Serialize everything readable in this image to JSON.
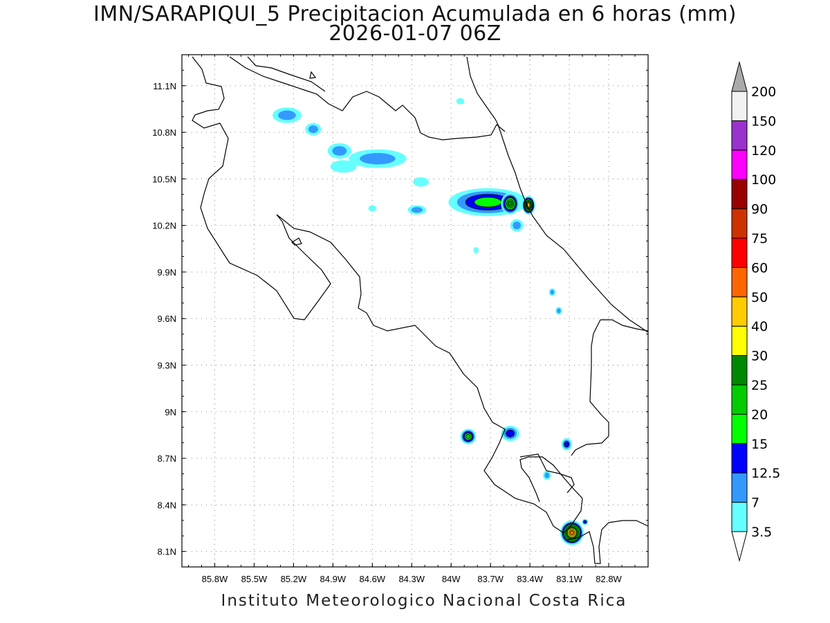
{
  "title_line1": "IMN/SARAPIQUI_5 Precipitacion Acumulada en 6 horas (mm)",
  "title_line2": "2026-01-07 06Z",
  "footer": "Instituto Meteorologico Nacional Costa Rica",
  "map": {
    "lon_range": [
      -86.05,
      -82.5
    ],
    "lat_range": [
      8.0,
      11.3
    ],
    "lon_ticks": [
      {
        "v": -85.8,
        "label": "85.8W"
      },
      {
        "v": -85.5,
        "label": "85.5W"
      },
      {
        "v": -85.2,
        "label": "85.2W"
      },
      {
        "v": -84.9,
        "label": "84.9W"
      },
      {
        "v": -84.6,
        "label": "84.6W"
      },
      {
        "v": -84.3,
        "label": "84.3W"
      },
      {
        "v": -84.0,
        "label": "84W"
      },
      {
        "v": -83.7,
        "label": "83.7W"
      },
      {
        "v": -83.4,
        "label": "83.4W"
      },
      {
        "v": -83.1,
        "label": "83.1W"
      },
      {
        "v": -82.8,
        "label": "82.8W"
      }
    ],
    "lat_ticks": [
      {
        "v": 11.1,
        "label": "11.1N"
      },
      {
        "v": 10.8,
        "label": "10.8N"
      },
      {
        "v": 10.5,
        "label": "10.5N"
      },
      {
        "v": 10.2,
        "label": "10.2N"
      },
      {
        "v": 9.9,
        "label": "9.9N"
      },
      {
        "v": 9.6,
        "label": "9.6N"
      },
      {
        "v": 9.3,
        "label": "9.3N"
      },
      {
        "v": 9.0,
        "label": "9N"
      },
      {
        "v": 8.7,
        "label": "8.7N"
      },
      {
        "v": 8.4,
        "label": "8.4N"
      },
      {
        "v": 8.1,
        "label": "8.1N"
      }
    ],
    "grid": "dotted"
  },
  "colorbar": {
    "levels": [
      "3.5",
      "7",
      "12.5",
      "15",
      "20",
      "25",
      "30",
      "40",
      "50",
      "60",
      "75",
      "90",
      "100",
      "120",
      "150",
      "200"
    ],
    "colors": [
      "#ffffff",
      "#66ffff",
      "#3399ff",
      "#0000ff",
      "#00ff00",
      "#00cc00",
      "#008800",
      "#ffff00",
      "#ffcc00",
      "#ff6600",
      "#ff0000",
      "#cc3300",
      "#990000",
      "#ff00ff",
      "#9933cc",
      "#f2f2f2",
      "#aaaaaa"
    ]
  },
  "precip_cells": [
    {
      "lon": -85.25,
      "lat": 10.91,
      "rx": 0.11,
      "ry": 0.05,
      "max": 7
    },
    {
      "lon": -85.05,
      "lat": 10.82,
      "rx": 0.06,
      "ry": 0.04,
      "max": 7
    },
    {
      "lon": -84.85,
      "lat": 10.68,
      "rx": 0.09,
      "ry": 0.05,
      "max": 7
    },
    {
      "lon": -84.56,
      "lat": 10.63,
      "rx": 0.22,
      "ry": 0.06,
      "max": 7
    },
    {
      "lon": -84.82,
      "lat": 10.58,
      "rx": 0.1,
      "ry": 0.04,
      "max": 3.5
    },
    {
      "lon": -83.93,
      "lat": 11.0,
      "rx": 0.03,
      "ry": 0.02,
      "max": 3.5
    },
    {
      "lon": -84.23,
      "lat": 10.48,
      "rx": 0.06,
      "ry": 0.03,
      "max": 3.5
    },
    {
      "lon": -84.26,
      "lat": 10.3,
      "rx": 0.07,
      "ry": 0.03,
      "max": 7
    },
    {
      "lon": -84.6,
      "lat": 10.31,
      "rx": 0.03,
      "ry": 0.02,
      "max": 3.5
    },
    {
      "lon": -83.72,
      "lat": 10.35,
      "rx": 0.3,
      "ry": 0.09,
      "max": 15
    },
    {
      "lon": -83.55,
      "lat": 10.34,
      "rx": 0.07,
      "ry": 0.07,
      "max": 25
    },
    {
      "lon": -83.41,
      "lat": 10.33,
      "rx": 0.05,
      "ry": 0.06,
      "max": 40
    },
    {
      "lon": -83.5,
      "lat": 10.2,
      "rx": 0.05,
      "ry": 0.04,
      "max": 7
    },
    {
      "lon": -83.81,
      "lat": 10.04,
      "rx": 0.02,
      "ry": 0.02,
      "max": 3.5
    },
    {
      "lon": -83.23,
      "lat": 9.77,
      "rx": 0.025,
      "ry": 0.025,
      "max": 7
    },
    {
      "lon": -83.18,
      "lat": 9.65,
      "rx": 0.025,
      "ry": 0.025,
      "max": 7
    },
    {
      "lon": -83.87,
      "lat": 8.84,
      "rx": 0.06,
      "ry": 0.05,
      "max": 20
    },
    {
      "lon": -83.55,
      "lat": 8.86,
      "rx": 0.07,
      "ry": 0.05,
      "max": 12.5
    },
    {
      "lon": -83.12,
      "lat": 8.79,
      "rx": 0.04,
      "ry": 0.04,
      "max": 12.5
    },
    {
      "lon": -83.27,
      "lat": 8.59,
      "rx": 0.03,
      "ry": 0.03,
      "max": 7
    },
    {
      "lon": -83.08,
      "lat": 8.22,
      "rx": 0.09,
      "ry": 0.08,
      "max": 50
    },
    {
      "lon": -82.98,
      "lat": 8.29,
      "rx": 0.025,
      "ry": 0.02,
      "max": 12.5
    }
  ]
}
